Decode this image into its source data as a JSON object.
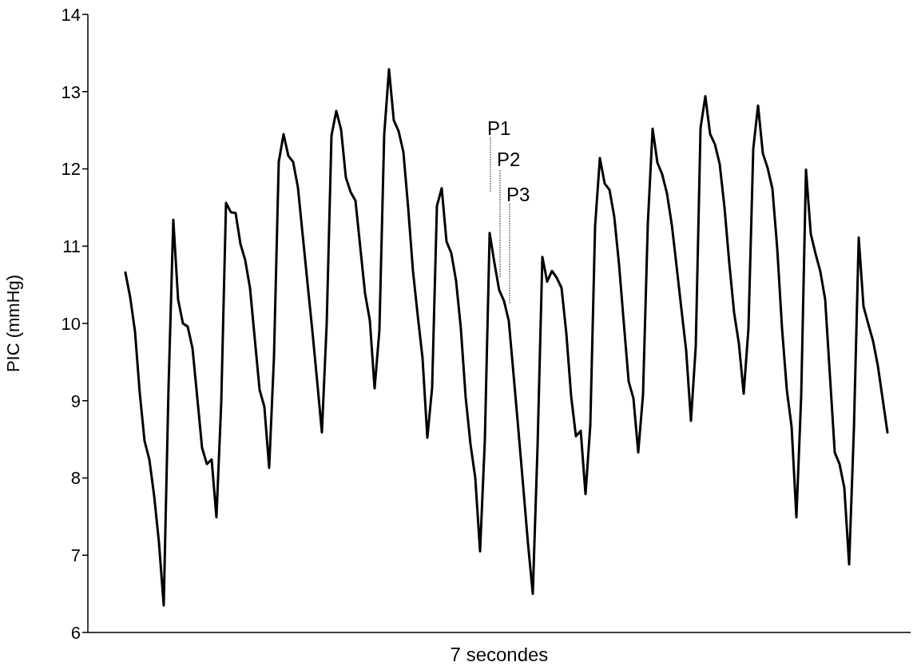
{
  "chart_data": {
    "type": "line",
    "xlabel": "7 secondes",
    "ylabel": "PIC (mmHg)",
    "categories": [
      null,
      null,
      null,
      null,
      null,
      null,
      null,
      null,
      null,
      null,
      null,
      null,
      null,
      null,
      null,
      null,
      null,
      null,
      null,
      null,
      null,
      null,
      null,
      null,
      null,
      null,
      null,
      null,
      null,
      null,
      null,
      null,
      null,
      null,
      null,
      null,
      null,
      null,
      null,
      null,
      null,
      null,
      null,
      null,
      null,
      null,
      null,
      null,
      null,
      null,
      null,
      null,
      null,
      null,
      null,
      null,
      null,
      null,
      null,
      null,
      null,
      null,
      null,
      null,
      null,
      null,
      null,
      null,
      null,
      null,
      null,
      null,
      null,
      null,
      null,
      null,
      null,
      null,
      null,
      null,
      null,
      null,
      null,
      null,
      null,
      null,
      null,
      null,
      null,
      null,
      null,
      null,
      null,
      null,
      null,
      null,
      null,
      null,
      null,
      null,
      null,
      null,
      null,
      null,
      null,
      null,
      null,
      null,
      null,
      null,
      null,
      null,
      null,
      null,
      null,
      null,
      null,
      null,
      null,
      null,
      null,
      null,
      null,
      null,
      null,
      null,
      null,
      null,
      null,
      null,
      null,
      null,
      null,
      null,
      null,
      null,
      null,
      null,
      null,
      null,
      null,
      null,
      null,
      null,
      null,
      null,
      null,
      null,
      null,
      null,
      null,
      null,
      null,
      null,
      null,
      null,
      null,
      null,
      null,
      null
    ],
    "series": [
      {
        "color": "#000000",
        "values": [
          10.66,
          10.34,
          9.9,
          9.1,
          8.48,
          8.24,
          7.77,
          7.17,
          6.35,
          9.16,
          11.34,
          10.31,
          10.0,
          9.96,
          9.68,
          9.04,
          8.39,
          8.18,
          8.24,
          7.49,
          8.97,
          11.56,
          11.44,
          11.43,
          11.03,
          10.82,
          10.46,
          9.8,
          9.14,
          8.92,
          8.13,
          9.56,
          12.09,
          12.45,
          12.17,
          12.09,
          11.76,
          11.14,
          10.52,
          9.91,
          9.26,
          8.59,
          9.99,
          12.43,
          12.75,
          12.51,
          11.89,
          11.7,
          11.59,
          10.99,
          10.39,
          10.04,
          9.16,
          9.91,
          12.44,
          13.29,
          12.63,
          12.49,
          12.22,
          11.5,
          10.68,
          10.1,
          9.55,
          8.52,
          9.17,
          11.52,
          11.75,
          11.06,
          10.91,
          10.55,
          9.93,
          9.04,
          8.44,
          8.0,
          7.05,
          8.49,
          11.17,
          10.78,
          10.43,
          10.29,
          10.03,
          9.33,
          8.62,
          7.89,
          7.15,
          6.5,
          8.42,
          10.86,
          10.54,
          10.68,
          10.59,
          10.46,
          9.87,
          9.06,
          8.54,
          8.61,
          7.79,
          8.68,
          11.26,
          12.14,
          11.81,
          11.73,
          11.38,
          10.76,
          10.0,
          9.25,
          9.03,
          8.33,
          9.08,
          11.29,
          12.52,
          12.08,
          11.93,
          11.68,
          11.28,
          10.74,
          10.19,
          9.65,
          8.74,
          9.7,
          12.53,
          12.94,
          12.45,
          12.32,
          12.06,
          11.5,
          10.78,
          10.14,
          9.74,
          9.09,
          9.94,
          12.26,
          12.82,
          12.2,
          12.01,
          11.74,
          10.97,
          9.94,
          9.14,
          8.66,
          7.49,
          9.06,
          11.99,
          11.16,
          10.9,
          10.67,
          10.31,
          9.32,
          8.33,
          8.18,
          7.87,
          6.88,
          8.64,
          11.11,
          10.22,
          9.99,
          9.77,
          9.45,
          9.02,
          8.59
        ]
      }
    ],
    "ylim": [
      6,
      14
    ],
    "yticks": [
      6,
      7,
      8,
      9,
      10,
      11,
      12,
      13,
      14
    ],
    "tick_labels": "y",
    "annotations": [
      "P1",
      "P2",
      "P3"
    ]
  }
}
